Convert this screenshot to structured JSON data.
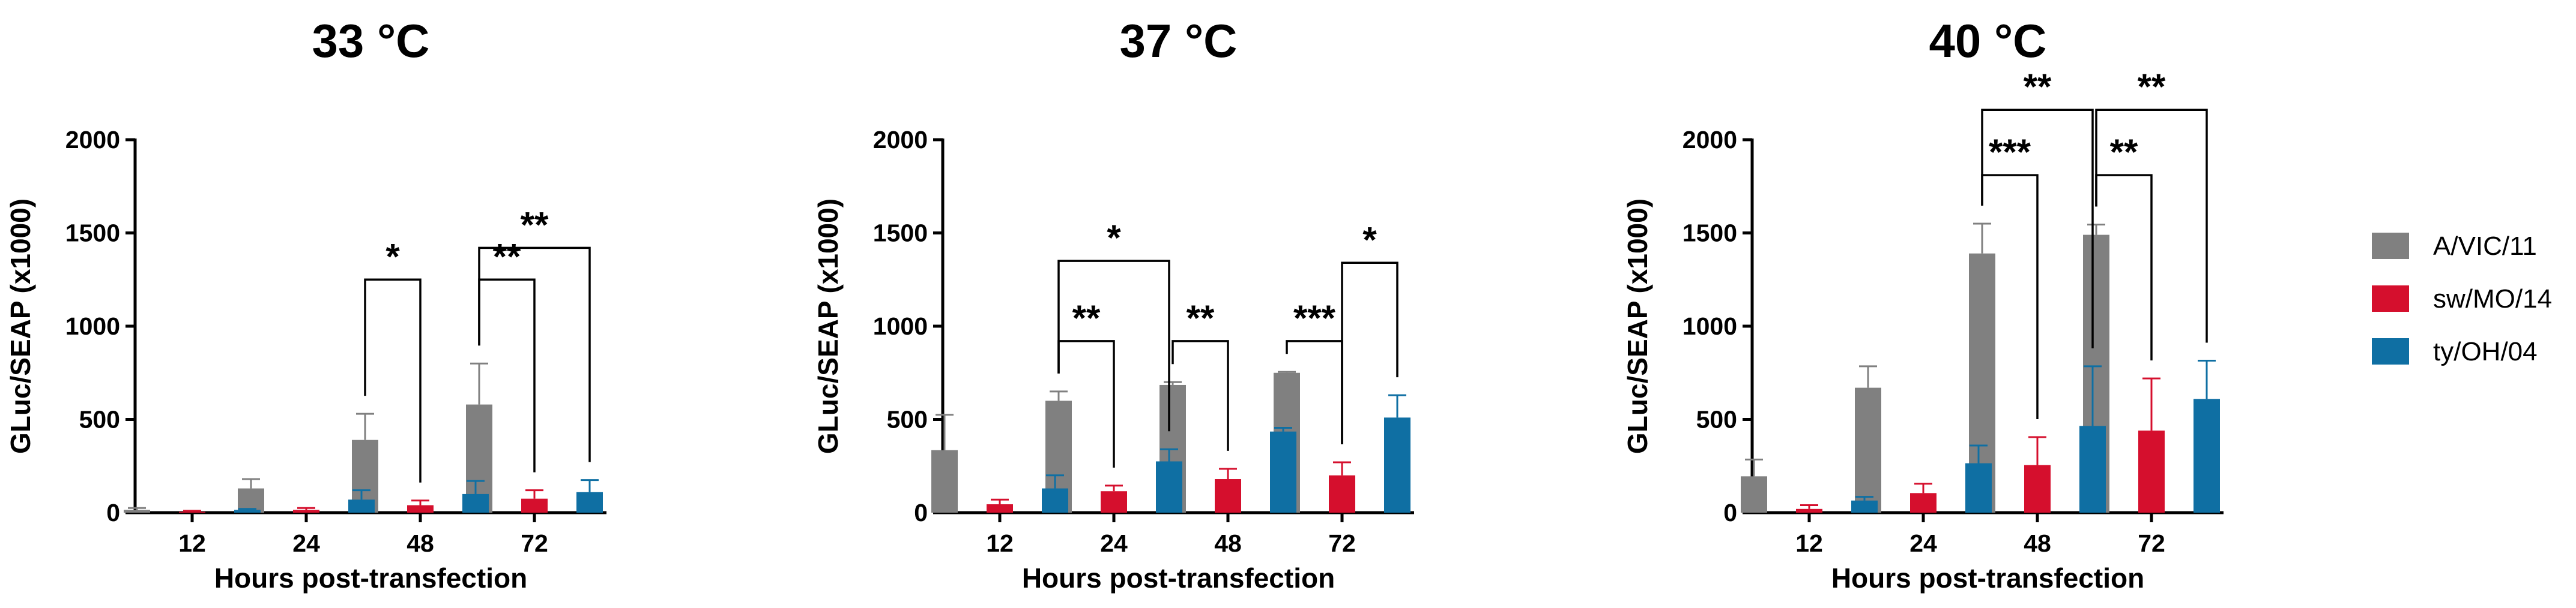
{
  "chart_data": [
    {
      "type": "bar",
      "title": "33 °C",
      "xlabel": "Hours post-transfection",
      "ylabel": "GLuc/SEAP (x1000)",
      "ylim": [
        0,
        2000
      ],
      "yticks": [
        0,
        500,
        1000,
        1500,
        2000
      ],
      "categories": [
        "12",
        "24",
        "48",
        "72"
      ],
      "series": [
        {
          "name": "A/VIC/11",
          "color": "#808080",
          "values": [
            15,
            130,
            390,
            580
          ],
          "errors": [
            10,
            50,
            140,
            220
          ]
        },
        {
          "name": "sw/MO/14",
          "color": "#d50f2d",
          "values": [
            5,
            15,
            40,
            75
          ],
          "errors": [
            5,
            10,
            25,
            45
          ]
        },
        {
          "name": "ty/OH/04",
          "color": "#0f6fa3",
          "values": [
            15,
            70,
            100,
            110
          ],
          "errors": [
            5,
            50,
            70,
            65
          ]
        }
      ],
      "significance": [
        {
          "category": "48",
          "from": "A/VIC/11",
          "to": "sw/MO/14",
          "label": "*",
          "level": 1250
        },
        {
          "category": "72",
          "from": "A/VIC/11",
          "to": "sw/MO/14",
          "label": "**",
          "level": 1250
        },
        {
          "category": "72",
          "from": "A/VIC/11",
          "to": "ty/OH/04",
          "label": "**",
          "level": 1420
        }
      ]
    },
    {
      "type": "bar",
      "title": "37 °C",
      "xlabel": "Hours post-transfection",
      "ylabel": "GLuc/SEAP (x1000)",
      "ylim": [
        0,
        2000
      ],
      "yticks": [
        0,
        500,
        1000,
        1500,
        2000
      ],
      "categories": [
        "12",
        "24",
        "48",
        "72"
      ],
      "series": [
        {
          "name": "A/VIC/11",
          "color": "#808080",
          "values": [
            335,
            600,
            685,
            750
          ],
          "errors": [
            190,
            50,
            15,
            5
          ]
        },
        {
          "name": "sw/MO/14",
          "color": "#d50f2d",
          "values": [
            45,
            115,
            180,
            200
          ],
          "errors": [
            25,
            30,
            55,
            70
          ]
        },
        {
          "name": "ty/OH/04",
          "color": "#0f6fa3",
          "values": [
            130,
            275,
            435,
            510
          ],
          "errors": [
            70,
            65,
            20,
            120
          ]
        }
      ],
      "significance": [
        {
          "category": "24",
          "from": "A/VIC/11",
          "to": "sw/MO/14",
          "label": "**",
          "level": 920
        },
        {
          "category": "24",
          "from": "A/VIC/11",
          "to": "ty/OH/04",
          "label": "*",
          "level": 1350
        },
        {
          "category": "48",
          "from": "A/VIC/11",
          "to": "sw/MO/14",
          "label": "**",
          "level": 920
        },
        {
          "category": "72",
          "from": "A/VIC/11",
          "to": "sw/MO/14",
          "label": "***",
          "level": 920
        },
        {
          "category": "72",
          "from": "sw/MO/14",
          "to": "ty/OH/04",
          "label": "*",
          "level": 1340
        }
      ]
    },
    {
      "type": "bar",
      "title": "40 °C",
      "xlabel": "Hours post-transfection",
      "ylabel": "GLuc/SEAP (x1000)",
      "ylim": [
        0,
        2000
      ],
      "yticks": [
        0,
        500,
        1000,
        1500,
        2000
      ],
      "categories": [
        "12",
        "24",
        "48",
        "72"
      ],
      "series": [
        {
          "name": "A/VIC/11",
          "color": "#808080",
          "values": [
            195,
            670,
            1390,
            1490
          ],
          "errors": [
            90,
            115,
            160,
            55
          ]
        },
        {
          "name": "sw/MO/14",
          "color": "#d50f2d",
          "values": [
            20,
            105,
            255,
            440
          ],
          "errors": [
            20,
            50,
            150,
            280
          ]
        },
        {
          "name": "ty/OH/04",
          "color": "#0f6fa3",
          "values": [
            65,
            265,
            465,
            610
          ],
          "errors": [
            20,
            95,
            320,
            205
          ]
        }
      ],
      "significance": [
        {
          "category": "48",
          "from": "A/VIC/11",
          "to": "sw/MO/14",
          "label": "***",
          "level": 1810
        },
        {
          "category": "48",
          "from": "A/VIC/11",
          "to": "ty/OH/04",
          "label": "**",
          "level": 2160
        },
        {
          "category": "72",
          "from": "A/VIC/11",
          "to": "sw/MO/14",
          "label": "**",
          "level": 1810
        },
        {
          "category": "72",
          "from": "A/VIC/11",
          "to": "ty/OH/04",
          "label": "**",
          "level": 2160
        }
      ]
    }
  ],
  "legend": {
    "placement": "right",
    "items": [
      {
        "label": "A/VIC/11",
        "color": "#808080"
      },
      {
        "label": "sw/MO/14",
        "color": "#d50f2d"
      },
      {
        "label": "ty/OH/04",
        "color": "#0f6fa3"
      }
    ]
  }
}
